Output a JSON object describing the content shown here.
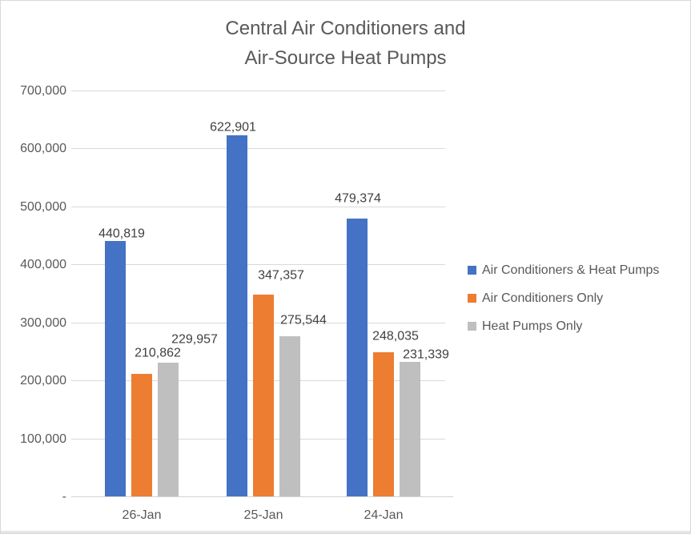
{
  "window": {
    "background": "#ffffff",
    "border_color": "#d9d9d9",
    "bottom_edge_color": "#e6e6e6"
  },
  "chart_data": {
    "type": "bar",
    "title": "Central Air Conditioners and Air-Source Heat Pumps",
    "title_lines": [
      "Central Air Conditioners and",
      "Air-Source Heat Pumps"
    ],
    "categories": [
      "26-Jan",
      "25-Jan",
      "24-Jan"
    ],
    "series": [
      {
        "name": "Air Conditioners & Heat Pumps",
        "color": "#4472C4",
        "values": [
          440819,
          622901,
          479374
        ],
        "labels": [
          "440,819",
          "622,901",
          "479,374"
        ]
      },
      {
        "name": "Air Conditioners Only",
        "color": "#ED7D31",
        "values": [
          210862,
          347357,
          248035
        ],
        "labels": [
          "210,862",
          "347,357",
          "248,035"
        ]
      },
      {
        "name": "Heat Pumps Only",
        "color": "#BFBFBF",
        "values": [
          229957,
          275544,
          231339
        ],
        "labels": [
          "229,957",
          "275,544",
          "231,339"
        ]
      }
    ],
    "y_axis": {
      "min": 0,
      "max": 700000,
      "ticks": [
        {
          "label": "700,000",
          "value": 700000
        },
        {
          "label": "600,000",
          "value": 600000
        },
        {
          "label": "500,000",
          "value": 500000
        },
        {
          "label": "400,000",
          "value": 400000
        },
        {
          "label": "300,000",
          "value": 300000
        },
        {
          "label": "200,000",
          "value": 200000
        },
        {
          "label": "100,000",
          "value": 100000
        },
        {
          "label": "-",
          "value": 0
        }
      ]
    },
    "legend_position": "right",
    "gridlines": true,
    "colors": {
      "gridline": "#d9d9d9",
      "axis_line": "#d3d3d3",
      "title_text": "#595959",
      "axis_text": "#595959",
      "legend_text": "#595959",
      "data_label_text": "#404040"
    }
  }
}
